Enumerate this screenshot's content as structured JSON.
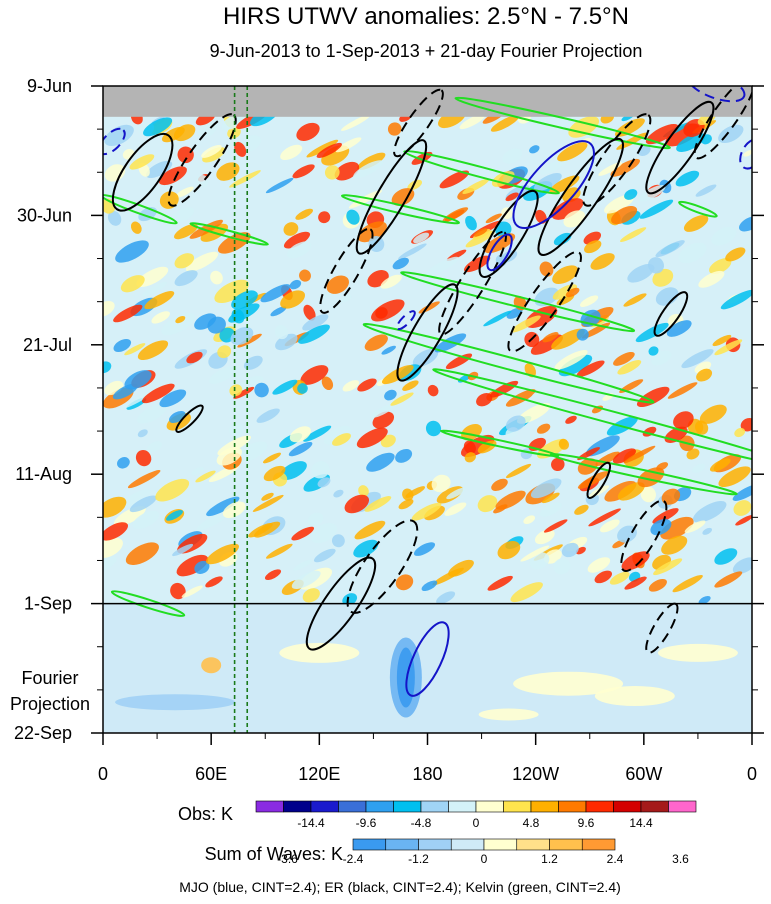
{
  "chart_data": {
    "type": "heatmap",
    "title": "HIRS UTWV anomalies: 2.5°N - 7.5°N",
    "subtitle": "9-Jun-2013 to 1-Sep-2013 + 21-day Fourier Projection",
    "x_ticks": [
      {
        "lon": 0,
        "label": "0"
      },
      {
        "lon": 60,
        "label": "60E"
      },
      {
        "lon": 120,
        "label": "120E"
      },
      {
        "lon": 180,
        "label": "180"
      },
      {
        "lon": 240,
        "label": "120W"
      },
      {
        "lon": 300,
        "label": "60W"
      },
      {
        "lon": 360,
        "label": "0"
      }
    ],
    "xlim": [
      0,
      360
    ],
    "y_ticks": [
      {
        "day": 0,
        "label": "9-Jun"
      },
      {
        "day": 21,
        "label": "30-Jun"
      },
      {
        "day": 42,
        "label": "21-Jul"
      },
      {
        "day": 63,
        "label": "11-Aug"
      },
      {
        "day": 84,
        "label": "1-Sep"
      },
      {
        "day": 105,
        "label": "22-Sep"
      }
    ],
    "ylim_days": [
      0,
      105
    ],
    "observation_end_day": 84,
    "fourier_projection_label": [
      "Fourier",
      "Projection"
    ],
    "reference_lons": [
      73,
      80
    ],
    "obs_colorbar": {
      "label": "Obs: K",
      "tick_labels": [
        "-14.4",
        "-9.6",
        "-4.8",
        "0",
        "4.8",
        "9.6",
        "14.4"
      ],
      "colors": [
        "#8a2be2",
        "#00008b",
        "#1a1acd",
        "#3a6fd8",
        "#2fa0f0",
        "#00c0f0",
        "#a0d4f5",
        "#d4f2f8",
        "#ffffd0",
        "#ffe44d",
        "#ffb000",
        "#ff7a00",
        "#ff2a00",
        "#d40000",
        "#a51a1a",
        "#ff66cc"
      ]
    },
    "waves_colorbar": {
      "label": "Sum of Waves: K",
      "tick_labels": [
        "-3.6",
        "-2.4",
        "-1.2",
        "0",
        "1.2",
        "2.4",
        "3.6"
      ],
      "colors": [
        "#3a9af0",
        "#6ab4f2",
        "#a0d0f5",
        "#cfeaf7",
        "#ffffd0",
        "#ffe08a",
        "#ffc04d",
        "#ff9a33"
      ]
    },
    "caption": "MJO (blue, CINT=2.4); ER (black, CINT=2.4); Kelvin (green, CINT=2.4)",
    "contours": {
      "mjo": {
        "color": "#1414c8"
      },
      "er": {
        "color": "#000000"
      },
      "kelvin": {
        "color": "#22dd22"
      }
    },
    "missing_data_band_days": [
      0,
      5
    ]
  }
}
